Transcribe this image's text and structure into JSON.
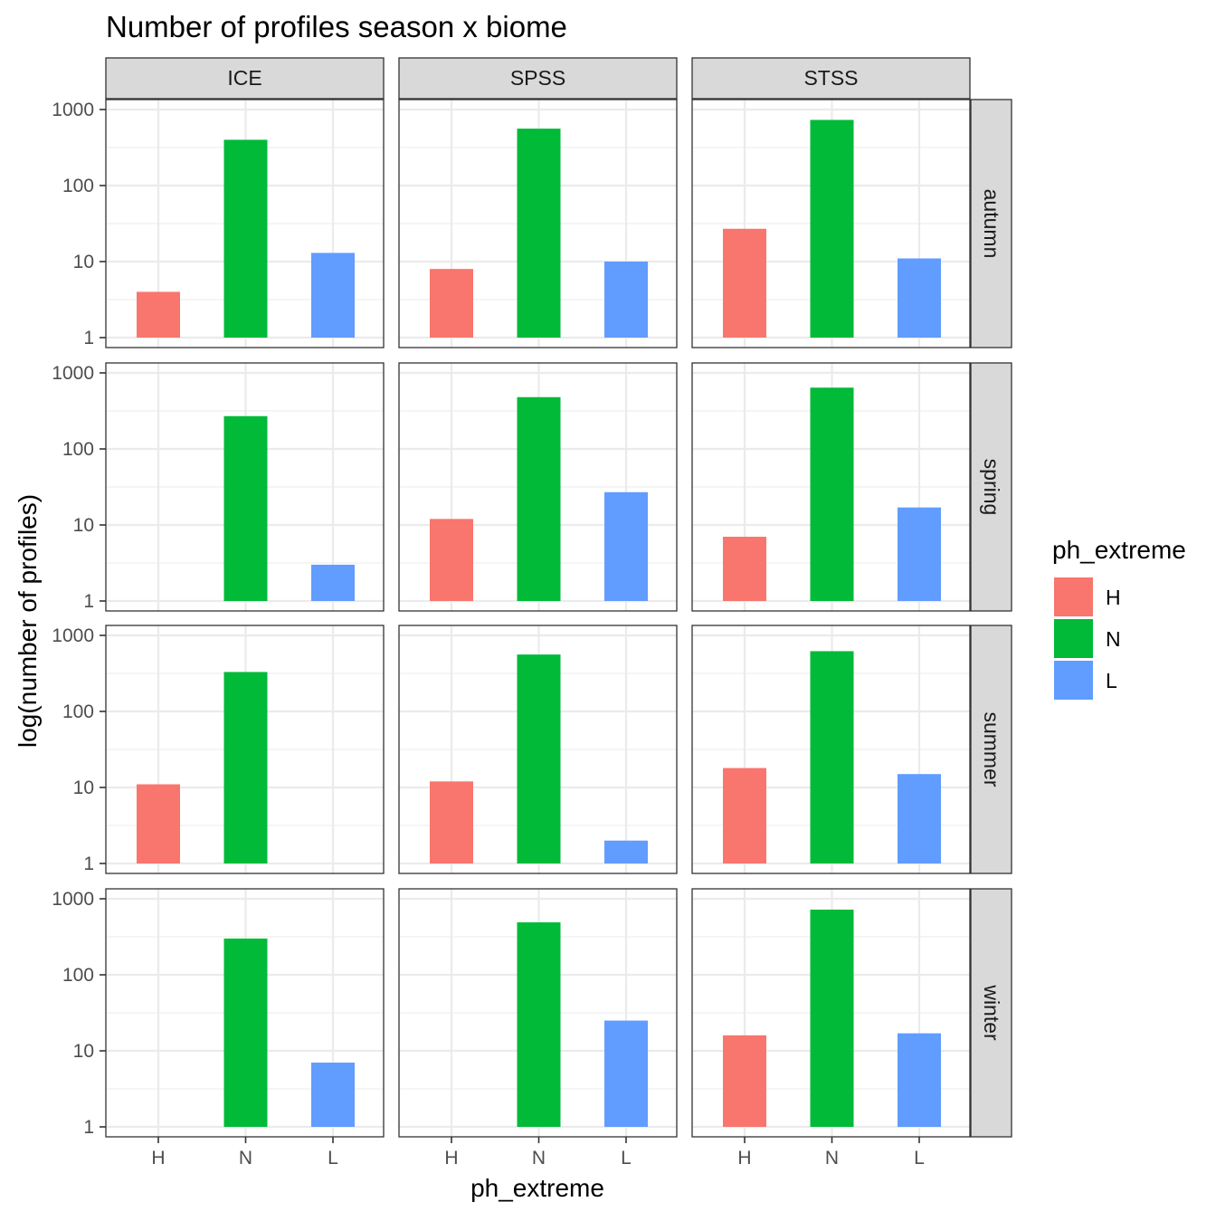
{
  "chart_data": {
    "type": "bar",
    "title": "Number of profiles season x biome",
    "xlabel": "ph_extreme",
    "ylabel": "log(number of profiles)",
    "y_scale": "log10",
    "ylim": [
      1,
      1000
    ],
    "yticks": [
      1,
      10,
      100,
      1000
    ],
    "categories": [
      "H",
      "N",
      "L"
    ],
    "facet_cols": [
      "ICE",
      "SPSS",
      "STSS"
    ],
    "facet_rows": [
      "autumn",
      "spring",
      "summer",
      "winter"
    ],
    "colors": {
      "H": "#F8766D",
      "N": "#00BA38",
      "L": "#619CFF"
    },
    "legend": {
      "title": "ph_extreme",
      "position": "right",
      "entries": [
        "H",
        "N",
        "L"
      ]
    },
    "grid": true,
    "panels": [
      {
        "row": "autumn",
        "col": "ICE",
        "values": {
          "H": 4,
          "N": 400,
          "L": 13
        }
      },
      {
        "row": "autumn",
        "col": "SPSS",
        "values": {
          "H": 8,
          "N": 560,
          "L": 10
        }
      },
      {
        "row": "autumn",
        "col": "STSS",
        "values": {
          "H": 27,
          "N": 730,
          "L": 11
        }
      },
      {
        "row": "spring",
        "col": "ICE",
        "values": {
          "H": null,
          "N": 270,
          "L": 3
        }
      },
      {
        "row": "spring",
        "col": "SPSS",
        "values": {
          "H": 12,
          "N": 480,
          "L": 27
        }
      },
      {
        "row": "spring",
        "col": "STSS",
        "values": {
          "H": 7,
          "N": 640,
          "L": 17
        }
      },
      {
        "row": "summer",
        "col": "ICE",
        "values": {
          "H": 11,
          "N": 330,
          "L": null
        }
      },
      {
        "row": "summer",
        "col": "SPSS",
        "values": {
          "H": 12,
          "N": 560,
          "L": 2
        }
      },
      {
        "row": "summer",
        "col": "STSS",
        "values": {
          "H": 18,
          "N": 620,
          "L": 15
        }
      },
      {
        "row": "winter",
        "col": "ICE",
        "values": {
          "H": null,
          "N": 300,
          "L": 7
        }
      },
      {
        "row": "winter",
        "col": "SPSS",
        "values": {
          "H": null,
          "N": 490,
          "L": 25
        }
      },
      {
        "row": "winter",
        "col": "STSS",
        "values": {
          "H": 16,
          "N": 720,
          "L": 17
        }
      }
    ]
  }
}
